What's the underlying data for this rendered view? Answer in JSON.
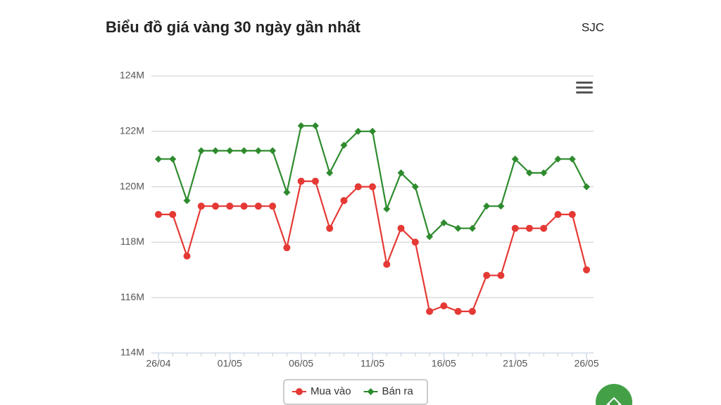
{
  "chart_data": {
    "type": "line",
    "title": "Biểu đồ giá vàng 30 ngày gần nhất",
    "subtitle": "SJC",
    "categories": [
      "26/04",
      null,
      null,
      null,
      null,
      "01/05",
      null,
      null,
      null,
      null,
      "06/05",
      null,
      null,
      null,
      null,
      "11/05",
      null,
      null,
      null,
      null,
      "16/05",
      null,
      null,
      null,
      null,
      "21/05",
      null,
      null,
      null,
      null,
      "26/05"
    ],
    "series": [
      {
        "name": "Mua vào",
        "color": "#e53935",
        "marker": "circle",
        "values": [
          119000000,
          119000000,
          117500000,
          119300000,
          119300000,
          119300000,
          119300000,
          119300000,
          119300000,
          117800000,
          120200000,
          120200000,
          118500000,
          119500000,
          120000000,
          120000000,
          117200000,
          118500000,
          118000000,
          115500000,
          115700000,
          115500000,
          115500000,
          116800000,
          116800000,
          118500000,
          118500000,
          118500000,
          119000000,
          119000000,
          117000000
        ]
      },
      {
        "name": "Bán ra",
        "color": "#2e8b2e",
        "marker": "diamond",
        "values": [
          121000000,
          121000000,
          119500000,
          121300000,
          121300000,
          121300000,
          121300000,
          121300000,
          121300000,
          119800000,
          122200000,
          122200000,
          120500000,
          121500000,
          122000000,
          122000000,
          119200000,
          120500000,
          120000000,
          118200000,
          118700000,
          118500000,
          118500000,
          119300000,
          119300000,
          121000000,
          120500000,
          120500000,
          121000000,
          121000000,
          120000000
        ]
      }
    ],
    "ylim": [
      114000000,
      124000000
    ],
    "yticks": [
      {
        "value": 114000000,
        "label": "114M"
      },
      {
        "value": 116000000,
        "label": "116M"
      },
      {
        "value": 118000000,
        "label": "118M"
      },
      {
        "value": 120000000,
        "label": "120M"
      },
      {
        "value": 122000000,
        "label": "122M"
      },
      {
        "value": 124000000,
        "label": "124M"
      }
    ],
    "grid": true,
    "legend": "bottom"
  }
}
